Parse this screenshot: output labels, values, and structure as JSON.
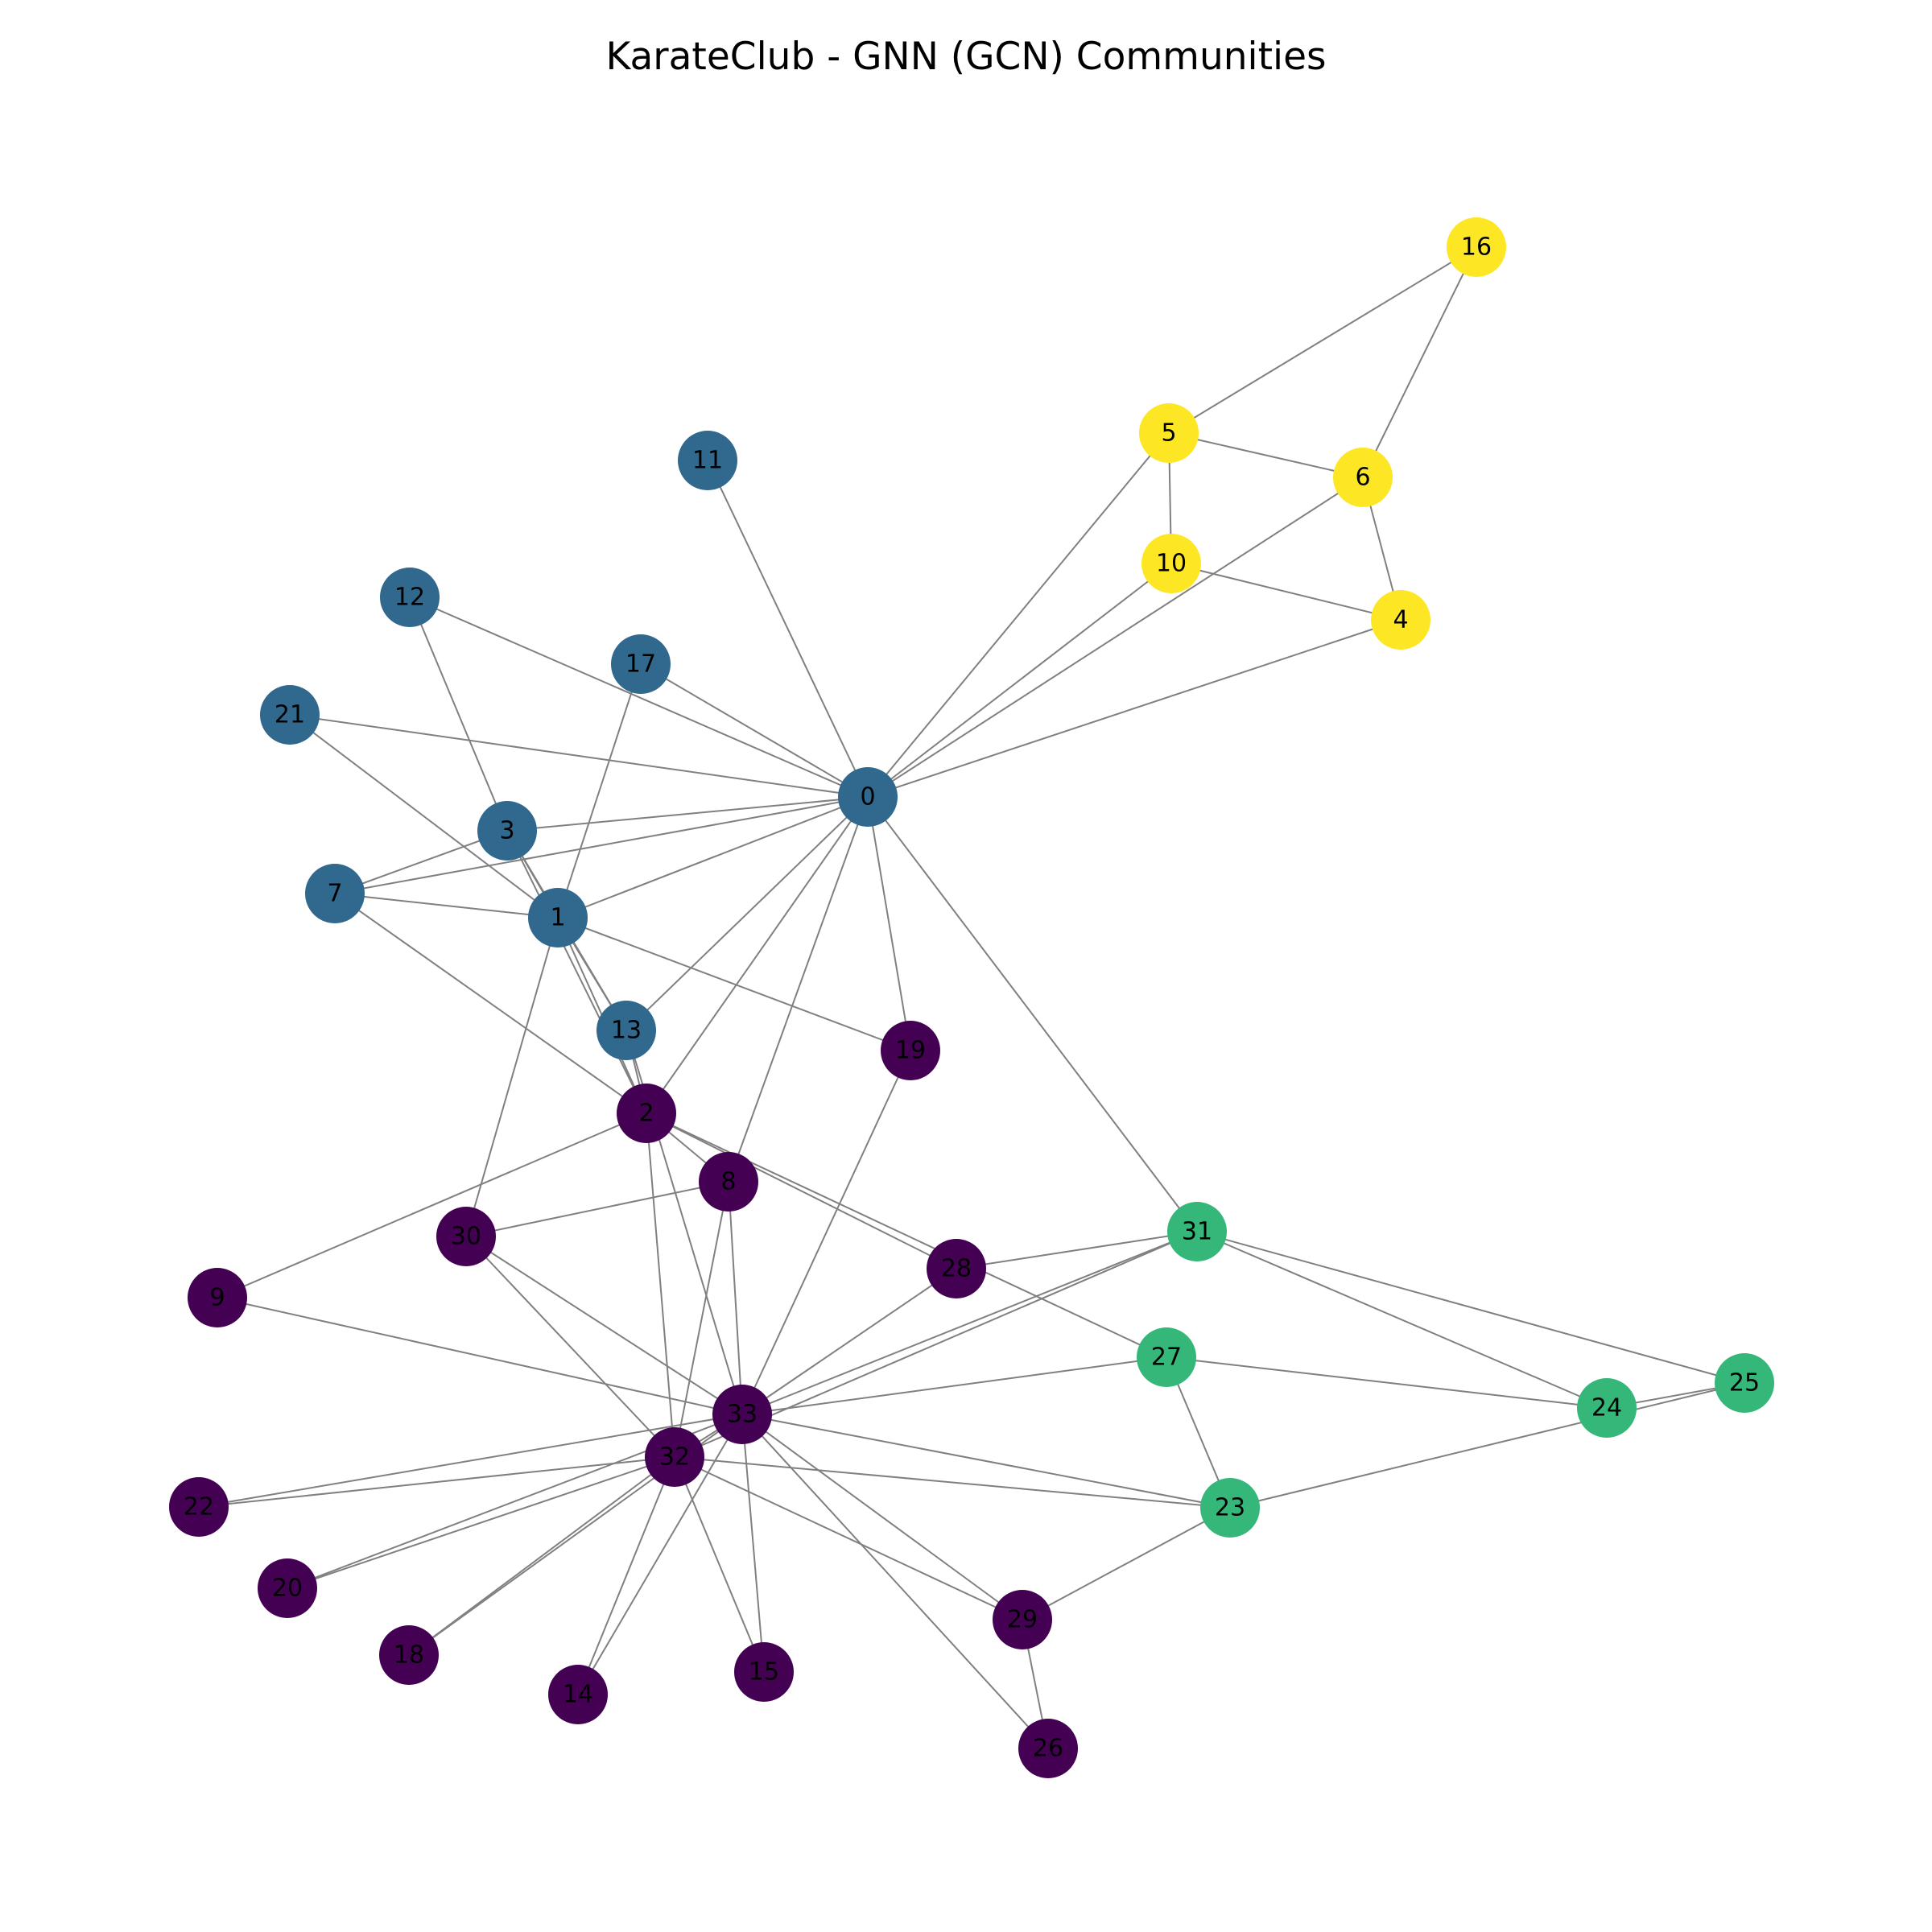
{
  "title": "KarateClub - GNN (GCN) Communities",
  "community_colors": {
    "c0": "#440154",
    "c1": "#31688e",
    "c2": "#35b779",
    "c3": "#fde725"
  },
  "chart_data": {
    "type": "network",
    "title": "KarateClub - GNN (GCN) Communities",
    "nodes": [
      {
        "id": 0,
        "label": "0",
        "community": "c1"
      },
      {
        "id": 1,
        "label": "1",
        "community": "c1"
      },
      {
        "id": 2,
        "label": "2",
        "community": "c0"
      },
      {
        "id": 3,
        "label": "3",
        "community": "c1"
      },
      {
        "id": 4,
        "label": "4",
        "community": "c3"
      },
      {
        "id": 5,
        "label": "5",
        "community": "c3"
      },
      {
        "id": 6,
        "label": "6",
        "community": "c3"
      },
      {
        "id": 7,
        "label": "7",
        "community": "c1"
      },
      {
        "id": 8,
        "label": "8",
        "community": "c0"
      },
      {
        "id": 9,
        "label": "9",
        "community": "c0"
      },
      {
        "id": 10,
        "label": "10",
        "community": "c3"
      },
      {
        "id": 11,
        "label": "11",
        "community": "c1"
      },
      {
        "id": 12,
        "label": "12",
        "community": "c1"
      },
      {
        "id": 13,
        "label": "13",
        "community": "c1"
      },
      {
        "id": 14,
        "label": "14",
        "community": "c0"
      },
      {
        "id": 15,
        "label": "15",
        "community": "c0"
      },
      {
        "id": 16,
        "label": "16",
        "community": "c3"
      },
      {
        "id": 17,
        "label": "17",
        "community": "c1"
      },
      {
        "id": 18,
        "label": "18",
        "community": "c0"
      },
      {
        "id": 19,
        "label": "19",
        "community": "c0"
      },
      {
        "id": 20,
        "label": "20",
        "community": "c0"
      },
      {
        "id": 21,
        "label": "21",
        "community": "c1"
      },
      {
        "id": 22,
        "label": "22",
        "community": "c0"
      },
      {
        "id": 23,
        "label": "23",
        "community": "c2"
      },
      {
        "id": 24,
        "label": "24",
        "community": "c2"
      },
      {
        "id": 25,
        "label": "25",
        "community": "c2"
      },
      {
        "id": 26,
        "label": "26",
        "community": "c0"
      },
      {
        "id": 27,
        "label": "27",
        "community": "c2"
      },
      {
        "id": 28,
        "label": "28",
        "community": "c0"
      },
      {
        "id": 29,
        "label": "29",
        "community": "c0"
      },
      {
        "id": 30,
        "label": "30",
        "community": "c0"
      },
      {
        "id": 31,
        "label": "31",
        "community": "c2"
      },
      {
        "id": 32,
        "label": "32",
        "community": "c0"
      },
      {
        "id": 33,
        "label": "33",
        "community": "c0"
      }
    ],
    "edges": [
      [
        0,
        1
      ],
      [
        0,
        2
      ],
      [
        0,
        3
      ],
      [
        0,
        4
      ],
      [
        0,
        5
      ],
      [
        0,
        6
      ],
      [
        0,
        7
      ],
      [
        0,
        8
      ],
      [
        0,
        10
      ],
      [
        0,
        11
      ],
      [
        0,
        12
      ],
      [
        0,
        13
      ],
      [
        0,
        17
      ],
      [
        0,
        19
      ],
      [
        0,
        21
      ],
      [
        0,
        31
      ],
      [
        1,
        2
      ],
      [
        1,
        3
      ],
      [
        1,
        7
      ],
      [
        1,
        13
      ],
      [
        1,
        17
      ],
      [
        1,
        19
      ],
      [
        1,
        21
      ],
      [
        1,
        30
      ],
      [
        2,
        3
      ],
      [
        2,
        7
      ],
      [
        2,
        8
      ],
      [
        2,
        9
      ],
      [
        2,
        13
      ],
      [
        2,
        27
      ],
      [
        2,
        28
      ],
      [
        2,
        32
      ],
      [
        3,
        7
      ],
      [
        3,
        12
      ],
      [
        3,
        13
      ],
      [
        4,
        6
      ],
      [
        4,
        10
      ],
      [
        5,
        6
      ],
      [
        5,
        10
      ],
      [
        5,
        16
      ],
      [
        6,
        16
      ],
      [
        8,
        30
      ],
      [
        8,
        32
      ],
      [
        8,
        33
      ],
      [
        9,
        33
      ],
      [
        13,
        33
      ],
      [
        14,
        32
      ],
      [
        14,
        33
      ],
      [
        15,
        32
      ],
      [
        15,
        33
      ],
      [
        18,
        32
      ],
      [
        18,
        33
      ],
      [
        19,
        33
      ],
      [
        20,
        32
      ],
      [
        20,
        33
      ],
      [
        22,
        32
      ],
      [
        22,
        33
      ],
      [
        23,
        25
      ],
      [
        23,
        27
      ],
      [
        23,
        29
      ],
      [
        23,
        32
      ],
      [
        23,
        33
      ],
      [
        24,
        25
      ],
      [
        24,
        27
      ],
      [
        24,
        31
      ],
      [
        25,
        31
      ],
      [
        26,
        29
      ],
      [
        26,
        33
      ],
      [
        27,
        33
      ],
      [
        28,
        31
      ],
      [
        28,
        33
      ],
      [
        29,
        32
      ],
      [
        29,
        33
      ],
      [
        30,
        32
      ],
      [
        30,
        33
      ],
      [
        31,
        32
      ],
      [
        31,
        33
      ],
      [
        32,
        33
      ]
    ]
  }
}
